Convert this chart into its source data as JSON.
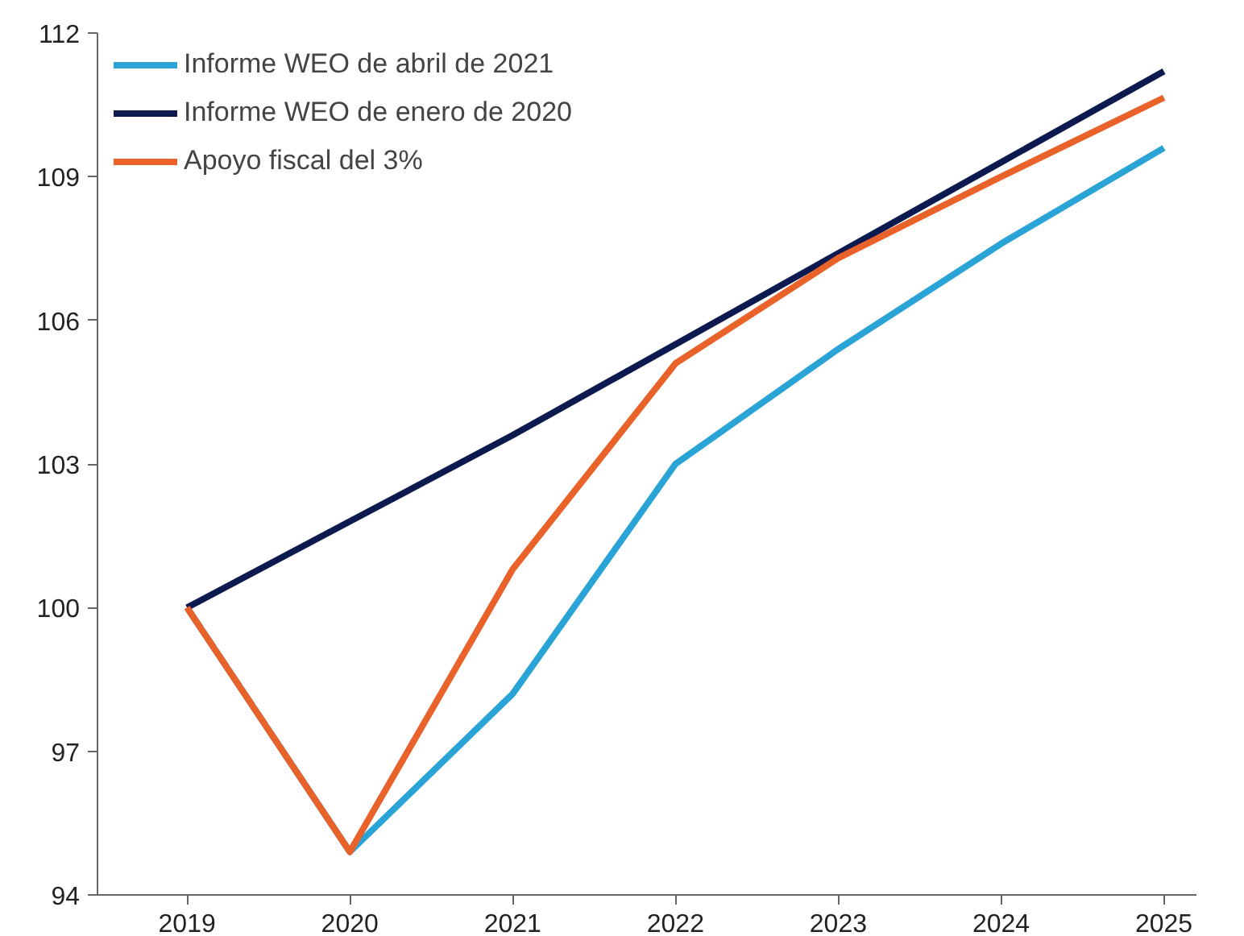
{
  "chart_data": {
    "type": "line",
    "x": [
      2019,
      2020,
      2021,
      2022,
      2023,
      2024,
      2025
    ],
    "xlim": [
      2018.45,
      2025.2
    ],
    "xticks": [
      2019,
      2020,
      2021,
      2022,
      2023,
      2024,
      2025
    ],
    "ylim": [
      94,
      112
    ],
    "yticks": [
      94,
      97,
      100,
      103,
      106,
      109,
      112
    ],
    "legend": "top left",
    "grid": false,
    "marker": "none",
    "line_style": "solid",
    "series": [
      {
        "name": "Informe WEO de abril de 2021",
        "color": "#2aa4d6",
        "values": [
          100,
          94.9,
          98.2,
          103.0,
          105.4,
          107.6,
          109.6
        ]
      },
      {
        "name": "Informe WEO de enero de 2020",
        "color": "#0d1a4f",
        "values": [
          100,
          101.8,
          103.6,
          105.5,
          107.4,
          109.3,
          111.2
        ]
      },
      {
        "name": "Apoyo fiscal del 3%",
        "color": "#e8622a",
        "values": [
          100,
          94.9,
          100.8,
          105.1,
          107.3,
          109.0,
          110.65
        ]
      }
    ]
  }
}
